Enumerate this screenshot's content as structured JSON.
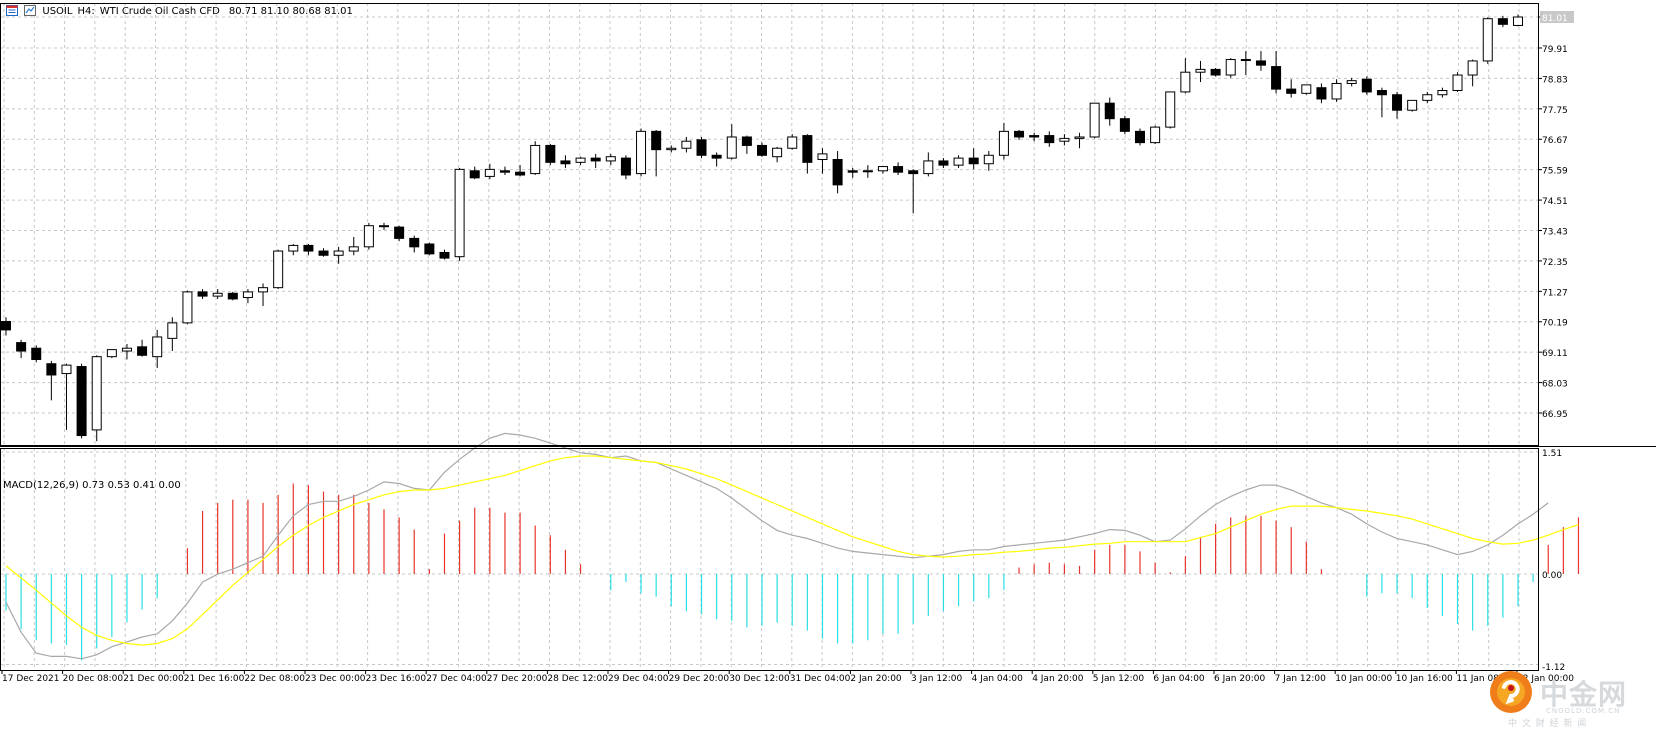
{
  "header": {
    "symbol": "USOIL",
    "timeframe": "H4:",
    "description": "WTI Crude Oil Cash CFD",
    "ohlc": "80.71 81.10 80.68 81.01"
  },
  "macd_label": "MACD(12,26,9) 0.73 0.53 0.41 0.00",
  "price_axis_labels": [
    "81.01",
    "79.91",
    "78.83",
    "77.75",
    "76.67",
    "75.59",
    "74.51",
    "73.43",
    "72.35",
    "71.27",
    "70.19",
    "69.11",
    "68.03",
    "66.95"
  ],
  "macd_axis_labels": [
    "1.51",
    "0.00",
    "-1.12"
  ],
  "time_labels": [
    "17 Dec 2021",
    "20 Dec 08:00",
    "21 Dec 00:00",
    "21 Dec 16:00",
    "22 Dec 08:00",
    "23 Dec 00:00",
    "23 Dec 16:00",
    "27 Dec 04:00",
    "27 Dec 20:00",
    "28 Dec 12:00",
    "29 Dec 04:00",
    "29 Dec 20:00",
    "30 Dec 12:00",
    "31 Dec 04:00",
    "2 Jan 20:00",
    "3 Jan 12:00",
    "4 Jan 04:00",
    "4 Jan 20:00",
    "5 Jan 12:00",
    "6 Jan 04:00",
    "6 Jan 20:00",
    "7 Jan 12:00",
    "10 Jan 00:00",
    "10 Jan 16:00",
    "11 Jan 08:00",
    "12 Jan 00:00"
  ],
  "watermark": {
    "brand": "中金网",
    "site": "CNGOLD.COM.CN",
    "tagline": "中 文 财 经 新 闻"
  },
  "colors": {
    "bull_body": "#ffffff",
    "bear_body": "#000000",
    "macd_pos": "#e8342c",
    "macd_neg": "#29e0e6",
    "signal": "#ffff00",
    "macd_line": "#a8a8a8",
    "grid": "#c8c8c8"
  },
  "chart_data": [
    {
      "type": "candlestick",
      "title": "USOIL, H4: WTI Crude Oil Cash CFD",
      "ylim": [
        65.9,
        82.3
      ],
      "y_ticks": [
        81.01,
        79.91,
        78.83,
        77.75,
        76.67,
        75.59,
        74.51,
        73.43,
        72.35,
        71.27,
        70.19,
        69.11,
        68.03,
        66.95
      ],
      "last_price": 81.01,
      "candles": [
        {
          "o": 70.2,
          "h": 70.35,
          "c": 69.9,
          "l": 69.7
        },
        {
          "o": 69.45,
          "h": 69.55,
          "c": 69.15,
          "l": 68.9
        },
        {
          "o": 69.25,
          "h": 69.35,
          "c": 68.85,
          "l": 68.75
        },
        {
          "o": 68.7,
          "h": 68.8,
          "c": 68.3,
          "l": 67.4
        },
        {
          "o": 68.35,
          "h": 68.7,
          "c": 68.65,
          "l": 66.35
        },
        {
          "o": 68.6,
          "h": 68.7,
          "c": 66.15,
          "l": 66.05
        },
        {
          "o": 66.35,
          "h": 69.0,
          "c": 68.95,
          "l": 65.95
        },
        {
          "o": 68.95,
          "h": 69.2,
          "c": 69.2,
          "l": 68.9
        },
        {
          "o": 69.15,
          "h": 69.4,
          "c": 69.25,
          "l": 68.85
        },
        {
          "o": 69.3,
          "h": 69.55,
          "c": 69.0,
          "l": 68.95
        },
        {
          "o": 68.95,
          "h": 69.9,
          "c": 69.65,
          "l": 68.55
        },
        {
          "o": 69.6,
          "h": 70.35,
          "c": 70.15,
          "l": 69.15
        },
        {
          "o": 70.15,
          "h": 71.3,
          "c": 71.25,
          "l": 70.1
        },
        {
          "o": 71.25,
          "h": 71.35,
          "c": 71.1,
          "l": 71.0
        },
        {
          "o": 71.1,
          "h": 71.35,
          "c": 71.2,
          "l": 71.0
        },
        {
          "o": 71.2,
          "h": 71.25,
          "c": 71.0,
          "l": 70.95
        },
        {
          "o": 71.05,
          "h": 71.35,
          "c": 71.25,
          "l": 70.85
        },
        {
          "o": 71.25,
          "h": 71.55,
          "c": 71.4,
          "l": 70.75
        },
        {
          "o": 71.4,
          "h": 72.75,
          "c": 72.7,
          "l": 71.35
        },
        {
          "o": 72.7,
          "h": 72.95,
          "c": 72.9,
          "l": 72.55
        },
        {
          "o": 72.9,
          "h": 72.95,
          "c": 72.7,
          "l": 72.55
        },
        {
          "o": 72.7,
          "h": 72.8,
          "c": 72.55,
          "l": 72.5
        },
        {
          "o": 72.55,
          "h": 72.85,
          "c": 72.7,
          "l": 72.25
        },
        {
          "o": 72.7,
          "h": 73.2,
          "c": 72.85,
          "l": 72.55
        },
        {
          "o": 72.85,
          "h": 73.7,
          "c": 73.6,
          "l": 72.75
        },
        {
          "o": 73.6,
          "h": 73.7,
          "c": 73.6,
          "l": 73.45
        },
        {
          "o": 73.55,
          "h": 73.6,
          "c": 73.15,
          "l": 73.05
        },
        {
          "o": 73.15,
          "h": 73.25,
          "c": 72.85,
          "l": 72.65
        },
        {
          "o": 72.95,
          "h": 73.0,
          "c": 72.6,
          "l": 72.55
        },
        {
          "o": 72.65,
          "h": 72.75,
          "c": 72.45,
          "l": 72.4
        },
        {
          "o": 72.5,
          "h": 75.65,
          "c": 75.6,
          "l": 72.35
        },
        {
          "o": 75.55,
          "h": 75.7,
          "c": 75.3,
          "l": 75.25
        },
        {
          "o": 75.35,
          "h": 75.8,
          "c": 75.6,
          "l": 75.25
        },
        {
          "o": 75.55,
          "h": 75.7,
          "c": 75.5,
          "l": 75.4
        },
        {
          "o": 75.5,
          "h": 75.75,
          "c": 75.4,
          "l": 75.35
        },
        {
          "o": 75.45,
          "h": 76.6,
          "c": 76.45,
          "l": 75.4
        },
        {
          "o": 76.45,
          "h": 76.5,
          "c": 75.85,
          "l": 75.75
        },
        {
          "o": 75.9,
          "h": 76.1,
          "c": 75.8,
          "l": 75.65
        },
        {
          "o": 75.85,
          "h": 76.05,
          "c": 76.0,
          "l": 75.75
        },
        {
          "o": 76.0,
          "h": 76.15,
          "c": 75.9,
          "l": 75.65
        },
        {
          "o": 75.9,
          "h": 76.15,
          "c": 76.05,
          "l": 75.75
        },
        {
          "o": 76.0,
          "h": 76.1,
          "c": 75.4,
          "l": 75.25
        },
        {
          "o": 75.45,
          "h": 77.05,
          "c": 76.95,
          "l": 75.35
        },
        {
          "o": 76.95,
          "h": 77.0,
          "c": 76.3,
          "l": 75.35
        },
        {
          "o": 76.3,
          "h": 76.45,
          "c": 76.35,
          "l": 76.2
        },
        {
          "o": 76.35,
          "h": 76.75,
          "c": 76.6,
          "l": 76.2
        },
        {
          "o": 76.65,
          "h": 76.75,
          "c": 76.1,
          "l": 76.0
        },
        {
          "o": 76.1,
          "h": 76.2,
          "c": 76.0,
          "l": 75.7
        },
        {
          "o": 76.0,
          "h": 77.2,
          "c": 76.75,
          "l": 75.95
        },
        {
          "o": 76.75,
          "h": 76.8,
          "c": 76.45,
          "l": 76.15
        },
        {
          "o": 76.45,
          "h": 76.55,
          "c": 76.1,
          "l": 76.05
        },
        {
          "o": 76.05,
          "h": 76.4,
          "c": 76.35,
          "l": 75.85
        },
        {
          "o": 76.35,
          "h": 76.85,
          "c": 76.75,
          "l": 76.3
        },
        {
          "o": 76.8,
          "h": 76.85,
          "c": 75.85,
          "l": 75.45
        },
        {
          "o": 75.95,
          "h": 76.35,
          "c": 76.15,
          "l": 75.45
        },
        {
          "o": 75.95,
          "h": 76.25,
          "c": 75.05,
          "l": 74.75
        },
        {
          "o": 75.55,
          "h": 75.65,
          "c": 75.5,
          "l": 75.3
        },
        {
          "o": 75.55,
          "h": 75.75,
          "c": 75.55,
          "l": 75.3
        },
        {
          "o": 75.55,
          "h": 75.7,
          "c": 75.7,
          "l": 75.45
        },
        {
          "o": 75.7,
          "h": 75.85,
          "c": 75.5,
          "l": 75.4
        },
        {
          "o": 75.55,
          "h": 75.6,
          "c": 75.45,
          "l": 74.05
        },
        {
          "o": 75.45,
          "h": 76.2,
          "c": 75.9,
          "l": 75.35
        },
        {
          "o": 75.9,
          "h": 76.0,
          "c": 75.75,
          "l": 75.65
        },
        {
          "o": 75.75,
          "h": 76.1,
          "c": 76.0,
          "l": 75.65
        },
        {
          "o": 76.0,
          "h": 76.35,
          "c": 75.8,
          "l": 75.6
        },
        {
          "o": 75.8,
          "h": 76.25,
          "c": 76.1,
          "l": 75.55
        },
        {
          "o": 76.1,
          "h": 77.25,
          "c": 76.95,
          "l": 75.95
        },
        {
          "o": 76.95,
          "h": 77.0,
          "c": 76.75,
          "l": 76.65
        },
        {
          "o": 76.8,
          "h": 76.9,
          "c": 76.75,
          "l": 76.6
        },
        {
          "o": 76.8,
          "h": 76.95,
          "c": 76.55,
          "l": 76.4
        },
        {
          "o": 76.6,
          "h": 76.85,
          "c": 76.7,
          "l": 76.45
        },
        {
          "o": 76.7,
          "h": 76.9,
          "c": 76.75,
          "l": 76.35
        },
        {
          "o": 76.75,
          "h": 77.95,
          "c": 77.95,
          "l": 76.7
        },
        {
          "o": 77.95,
          "h": 78.15,
          "c": 77.4,
          "l": 77.15
        },
        {
          "o": 77.4,
          "h": 77.5,
          "c": 76.95,
          "l": 76.85
        },
        {
          "o": 76.95,
          "h": 77.05,
          "c": 76.55,
          "l": 76.45
        },
        {
          "o": 76.55,
          "h": 77.15,
          "c": 77.1,
          "l": 76.5
        },
        {
          "o": 77.1,
          "h": 78.35,
          "c": 78.35,
          "l": 77.05
        },
        {
          "o": 78.35,
          "h": 79.55,
          "c": 79.05,
          "l": 78.3
        },
        {
          "o": 79.05,
          "h": 79.45,
          "c": 79.15,
          "l": 78.7
        },
        {
          "o": 79.15,
          "h": 79.2,
          "c": 78.95,
          "l": 78.9
        },
        {
          "o": 78.95,
          "h": 79.55,
          "c": 79.5,
          "l": 78.85
        },
        {
          "o": 79.5,
          "h": 79.8,
          "c": 79.5,
          "l": 78.95
        },
        {
          "o": 79.45,
          "h": 79.8,
          "c": 79.3,
          "l": 79.1
        },
        {
          "o": 79.25,
          "h": 79.8,
          "c": 78.45,
          "l": 78.3
        },
        {
          "o": 78.45,
          "h": 78.8,
          "c": 78.3,
          "l": 78.15
        },
        {
          "o": 78.3,
          "h": 78.6,
          "c": 78.6,
          "l": 78.25
        },
        {
          "o": 78.5,
          "h": 78.65,
          "c": 78.1,
          "l": 77.95
        },
        {
          "o": 78.1,
          "h": 78.8,
          "c": 78.65,
          "l": 78.0
        },
        {
          "o": 78.65,
          "h": 78.85,
          "c": 78.75,
          "l": 78.55
        },
        {
          "o": 78.8,
          "h": 78.9,
          "c": 78.35,
          "l": 78.25
        },
        {
          "o": 78.4,
          "h": 78.5,
          "c": 78.25,
          "l": 77.45
        },
        {
          "o": 78.25,
          "h": 78.35,
          "c": 77.7,
          "l": 77.4
        },
        {
          "o": 77.7,
          "h": 78.05,
          "c": 78.05,
          "l": 77.65
        },
        {
          "o": 78.05,
          "h": 78.35,
          "c": 78.25,
          "l": 77.95
        },
        {
          "o": 78.25,
          "h": 78.5,
          "c": 78.4,
          "l": 78.15
        },
        {
          "o": 78.4,
          "h": 79.05,
          "c": 78.95,
          "l": 78.35
        },
        {
          "o": 78.95,
          "h": 79.5,
          "c": 79.45,
          "l": 78.55
        },
        {
          "o": 79.45,
          "h": 81.0,
          "c": 80.95,
          "l": 79.35
        },
        {
          "o": 80.95,
          "h": 81.05,
          "c": 80.75,
          "l": 80.65
        },
        {
          "o": 80.71,
          "h": 81.1,
          "c": 81.01,
          "l": 80.68
        }
      ]
    },
    {
      "type": "bar",
      "title": "MACD(12,26,9) 0.73 0.53 0.41 0.00",
      "ylim": [
        -1.12,
        1.51
      ],
      "y_ticks": [
        1.51,
        0.0,
        -1.12
      ],
      "histogram": [
        -0.45,
        -0.68,
        -0.82,
        -0.86,
        -0.88,
        -1.07,
        -0.92,
        -0.78,
        -0.6,
        -0.44,
        -0.3,
        0.0,
        0.32,
        0.78,
        0.88,
        0.92,
        0.92,
        0.88,
        0.98,
        1.12,
        1.1,
        1.02,
        0.98,
        0.98,
        0.88,
        0.8,
        0.7,
        0.55,
        0.06,
        0.5,
        0.66,
        0.82,
        0.82,
        0.76,
        0.76,
        0.6,
        0.48,
        0.3,
        0.12,
        0.0,
        -0.2,
        -0.1,
        -0.24,
        -0.28,
        -0.4,
        -0.46,
        -0.5,
        -0.56,
        -0.58,
        -0.66,
        -0.64,
        -0.6,
        -0.64,
        -0.7,
        -0.8,
        -0.86,
        -0.86,
        -0.82,
        -0.74,
        -0.74,
        -0.62,
        -0.52,
        -0.46,
        -0.4,
        -0.34,
        -0.3,
        -0.2,
        0.08,
        0.12,
        0.14,
        0.12,
        0.1,
        0.3,
        0.36,
        0.36,
        0.28,
        0.14,
        0.02,
        0.22,
        0.46,
        0.62,
        0.7,
        0.72,
        0.72,
        0.66,
        0.58,
        0.4,
        0.06,
        0.0,
        0.0,
        -0.28,
        -0.24,
        -0.24,
        -0.3,
        -0.42,
        -0.52,
        -0.62,
        -0.7,
        -0.64,
        -0.54,
        -0.4,
        -0.1,
        0.36,
        0.58,
        0.7
      ],
      "signal_line": [
        0.1,
        -0.05,
        -0.2,
        -0.36,
        -0.52,
        -0.66,
        -0.76,
        -0.82,
        -0.86,
        -0.88,
        -0.86,
        -0.8,
        -0.68,
        -0.5,
        -0.32,
        -0.14,
        0.02,
        0.18,
        0.34,
        0.48,
        0.6,
        0.7,
        0.78,
        0.86,
        0.92,
        0.98,
        1.02,
        1.04,
        1.04,
        1.06,
        1.1,
        1.14,
        1.18,
        1.22,
        1.28,
        1.34,
        1.4,
        1.44,
        1.46,
        1.46,
        1.44,
        1.42,
        1.4,
        1.38,
        1.34,
        1.3,
        1.24,
        1.18,
        1.1,
        1.02,
        0.94,
        0.86,
        0.78,
        0.7,
        0.62,
        0.54,
        0.46,
        0.4,
        0.34,
        0.28,
        0.24,
        0.22,
        0.21,
        0.22,
        0.24,
        0.25,
        0.27,
        0.28,
        0.3,
        0.32,
        0.33,
        0.35,
        0.37,
        0.38,
        0.4,
        0.4,
        0.4,
        0.4,
        0.4,
        0.45,
        0.5,
        0.58,
        0.66,
        0.74,
        0.8,
        0.84,
        0.84,
        0.84,
        0.82,
        0.8,
        0.78,
        0.75,
        0.72,
        0.68,
        0.62,
        0.56,
        0.5,
        0.44,
        0.4,
        0.37,
        0.38,
        0.42,
        0.48,
        0.55,
        0.61
      ],
      "macd_line": [
        -0.35,
        -0.72,
        -0.98,
        -1.02,
        -1.02,
        -1.05,
        -1.0,
        -0.9,
        -0.84,
        -0.78,
        -0.74,
        -0.58,
        -0.36,
        -0.1,
        0.0,
        0.06,
        0.14,
        0.22,
        0.48,
        0.72,
        0.86,
        0.9,
        0.9,
        0.96,
        1.04,
        1.14,
        1.12,
        1.06,
        1.04,
        1.26,
        1.42,
        1.56,
        1.68,
        1.74,
        1.72,
        1.68,
        1.62,
        1.56,
        1.5,
        1.48,
        1.44,
        1.46,
        1.4,
        1.38,
        1.3,
        1.22,
        1.14,
        1.06,
        0.94,
        0.8,
        0.66,
        0.54,
        0.48,
        0.44,
        0.38,
        0.32,
        0.28,
        0.26,
        0.24,
        0.22,
        0.2,
        0.22,
        0.24,
        0.28,
        0.3,
        0.3,
        0.34,
        0.36,
        0.38,
        0.4,
        0.42,
        0.46,
        0.5,
        0.55,
        0.54,
        0.48,
        0.4,
        0.42,
        0.56,
        0.72,
        0.86,
        0.96,
        1.04,
        1.1,
        1.1,
        1.04,
        0.96,
        0.88,
        0.82,
        0.74,
        0.62,
        0.52,
        0.44,
        0.4,
        0.36,
        0.3,
        0.24,
        0.28,
        0.36,
        0.48,
        0.62,
        0.74,
        0.88
      ]
    }
  ]
}
